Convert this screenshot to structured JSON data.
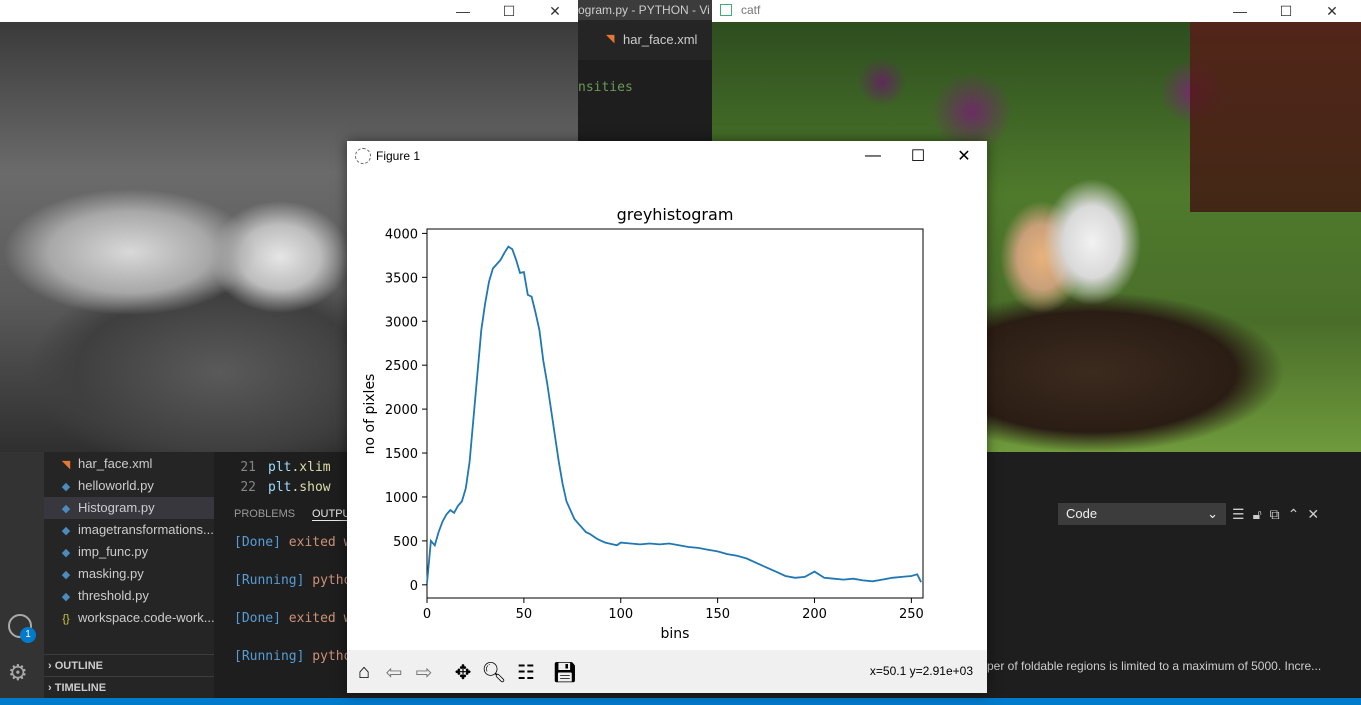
{
  "grey_window": {
    "buttons": [
      "—",
      "☐",
      "✕"
    ]
  },
  "vscode_top": {
    "title": "ogram.py - PYTHON - Vi",
    "tab": "har_face.xml",
    "code_fragment": "nsities"
  },
  "color_window": {
    "title": "catf",
    "buttons": [
      "—",
      "☐",
      "✕"
    ]
  },
  "explorer": {
    "files": [
      {
        "icon": "rss-icon",
        "name": "har_face.xml"
      },
      {
        "icon": "python-icon",
        "name": "helloworld.py"
      },
      {
        "icon": "python-icon",
        "name": "Histogram.py"
      },
      {
        "icon": "python-icon",
        "name": "imagetransformations..."
      },
      {
        "icon": "python-icon",
        "name": "imp_func.py"
      },
      {
        "icon": "python-icon",
        "name": "masking.py"
      },
      {
        "icon": "python-icon",
        "name": "threshold.py"
      },
      {
        "icon": "braces-icon",
        "name": "workspace.code-work..."
      }
    ],
    "outline": "OUTLINE",
    "timeline": "TIMELINE",
    "badge": "1"
  },
  "editor": {
    "lines": [
      {
        "num": "21",
        "obj": "plt",
        "rest": ".xlim"
      },
      {
        "num": "22",
        "obj": "plt",
        "rest": ".show"
      }
    ]
  },
  "panel": {
    "tabs": [
      "PROBLEMS",
      "OUTPU"
    ],
    "output": [
      {
        "tag": "[Done]",
        "text": "exited w"
      },
      {
        "tag": "[Running]",
        "text": "pytho"
      },
      {
        "tag": "[Done]",
        "text": "exited w"
      },
      {
        "tag": "[Running]",
        "text": "pytho"
      }
    ],
    "select_value": "Code",
    "notification": "per of foldable regions is limited to a maximum of 5000. Incre..."
  },
  "figure": {
    "window_title": "Figure 1",
    "coords": "x=50.1 y=2.91e+03"
  },
  "chart_data": {
    "type": "line",
    "title": "greyhistogram",
    "xlabel": "bins",
    "ylabel": "no of pixles",
    "xlim": [
      0,
      256
    ],
    "ylim": [
      -150,
      4050
    ],
    "xticks": [
      0,
      50,
      100,
      150,
      200,
      250
    ],
    "yticks": [
      0,
      500,
      1000,
      1500,
      2000,
      2500,
      3000,
      3500,
      4000
    ],
    "color": "#1f77b4",
    "x": [
      0,
      2,
      4,
      6,
      8,
      10,
      12,
      14,
      16,
      18,
      20,
      22,
      24,
      26,
      28,
      30,
      32,
      34,
      36,
      38,
      40,
      42,
      44,
      46,
      48,
      50,
      52,
      54,
      56,
      58,
      60,
      62,
      64,
      66,
      68,
      70,
      72,
      74,
      76,
      78,
      80,
      82,
      84,
      86,
      88,
      90,
      92,
      94,
      96,
      98,
      100,
      105,
      110,
      115,
      120,
      125,
      130,
      135,
      140,
      145,
      150,
      155,
      160,
      165,
      170,
      175,
      180,
      185,
      190,
      195,
      200,
      205,
      210,
      215,
      220,
      225,
      230,
      235,
      240,
      245,
      250,
      253,
      255
    ],
    "y": [
      20,
      500,
      450,
      600,
      720,
      800,
      850,
      820,
      900,
      950,
      1100,
      1400,
      1900,
      2400,
      2900,
      3200,
      3450,
      3600,
      3650,
      3700,
      3780,
      3850,
      3820,
      3700,
      3550,
      3560,
      3300,
      3280,
      3100,
      2900,
      2550,
      2300,
      2000,
      1700,
      1400,
      1150,
      950,
      850,
      750,
      700,
      650,
      600,
      580,
      550,
      520,
      500,
      480,
      470,
      460,
      450,
      480,
      470,
      460,
      470,
      460,
      470,
      450,
      430,
      420,
      400,
      380,
      350,
      330,
      300,
      250,
      200,
      150,
      100,
      80,
      90,
      150,
      80,
      70,
      60,
      70,
      50,
      40,
      60,
      80,
      90,
      100,
      120,
      30
    ]
  }
}
